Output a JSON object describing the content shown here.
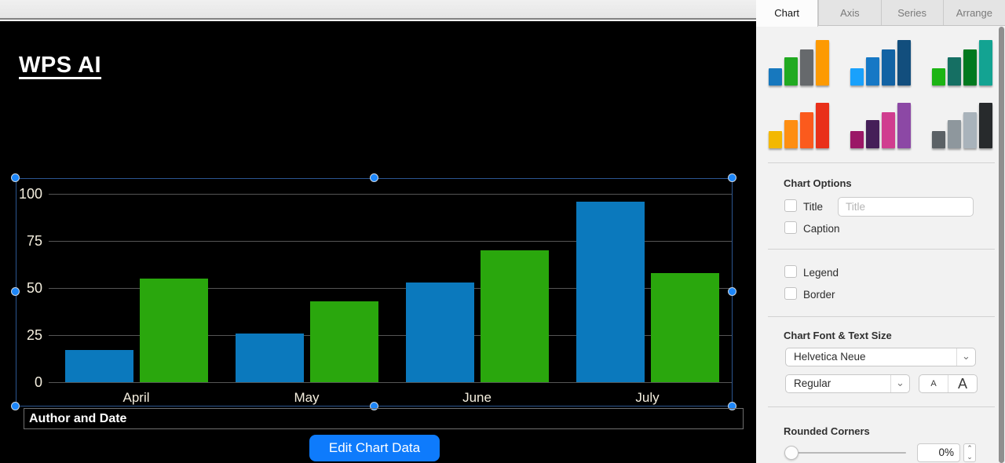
{
  "slide": {
    "title": "WPS AI",
    "footer_text": "Author and Date",
    "edit_chart_button": "Edit Chart Data"
  },
  "chart_data": {
    "type": "bar",
    "categories": [
      "April",
      "May",
      "June",
      "July"
    ],
    "series": [
      {
        "name": "blue-series",
        "color": "#0b79bd",
        "values": [
          17,
          26,
          53,
          96
        ]
      },
      {
        "name": "green-series",
        "color": "#2aa70d",
        "values": [
          55,
          43,
          70,
          58
        ]
      }
    ],
    "y_ticks": [
      0,
      25,
      50,
      75,
      100
    ],
    "ylim": [
      0,
      100
    ],
    "grid": true,
    "legend": false,
    "title": "",
    "xlabel": "",
    "ylabel": ""
  },
  "panel": {
    "tabs": [
      {
        "label": "Chart",
        "selected": true
      },
      {
        "label": "Axis",
        "selected": false
      },
      {
        "label": "Series",
        "selected": false
      },
      {
        "label": "Arrange",
        "selected": false
      }
    ],
    "style_thumbnails": [
      {
        "name": "multicolor",
        "colors": [
          "#1778be",
          "#21aa21",
          "#66696c",
          "#fd9a02"
        ]
      },
      {
        "name": "blues",
        "colors": [
          "#19a1fc",
          "#1678c5",
          "#1263a4",
          "#124e7d"
        ]
      },
      {
        "name": "greens",
        "colors": [
          "#1cb414",
          "#156f63",
          "#02791f",
          "#13a392"
        ]
      },
      {
        "name": "warm",
        "colors": [
          "#f3b800",
          "#fe8e12",
          "#fb5a1d",
          "#e9301a"
        ]
      },
      {
        "name": "purples",
        "colors": [
          "#9b1766",
          "#451f58",
          "#d03d8f",
          "#8c48a5"
        ]
      },
      {
        "name": "grays",
        "colors": [
          "#5b6165",
          "#8e979d",
          "#a9b3bb",
          "#272a2c"
        ]
      }
    ],
    "chart_options": {
      "heading": "Chart Options",
      "title_label": "Title",
      "title_placeholder": "Title",
      "title_checked": false,
      "caption_label": "Caption",
      "caption_checked": false,
      "legend_label": "Legend",
      "legend_checked": false,
      "border_label": "Border",
      "border_checked": false
    },
    "font_section": {
      "heading": "Chart Font & Text Size",
      "font_family_value": "Helvetica Neue",
      "font_style_value": "Regular",
      "text_smaller_label": "A",
      "text_larger_label": "A"
    },
    "rounded_corners": {
      "heading": "Rounded Corners",
      "value": "0%",
      "slider_percent": 0
    }
  }
}
